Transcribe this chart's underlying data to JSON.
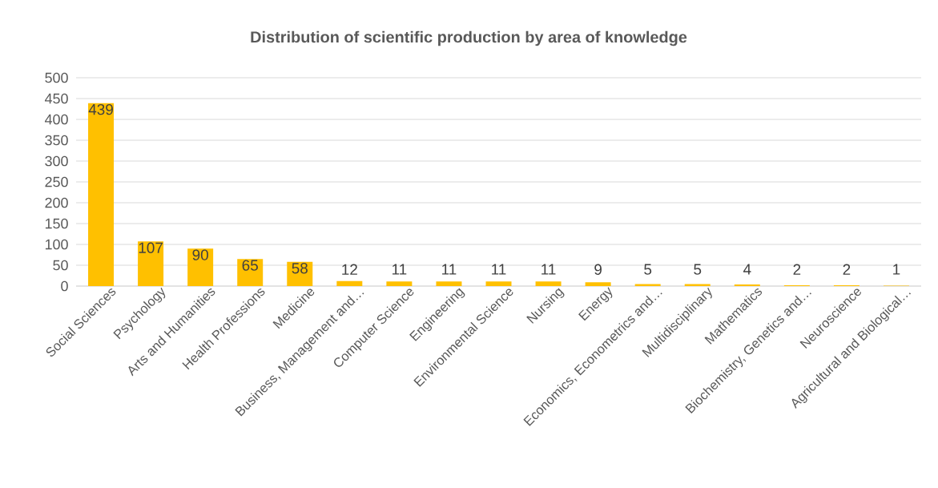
{
  "chart_data": {
    "type": "bar",
    "title": "Distribution of scientific production by area of knowledge",
    "categories": [
      "Social Sciences",
      "Psychology",
      "Arts and Humanities",
      "Health Professions",
      "Medicine",
      "Business, Management and…",
      "Computer Science",
      "Engineering",
      "Environmental Science",
      "Nursing",
      "Energy",
      "Economics, Econometrics and…",
      "Multidisciplinary",
      "Mathematics",
      "Biochemistry, Genetics and…",
      "Neuroscience",
      "Agricultural and Biological…"
    ],
    "values": [
      439,
      107,
      90,
      65,
      58,
      12,
      11,
      11,
      11,
      11,
      9,
      5,
      5,
      4,
      2,
      2,
      1
    ],
    "color": "#ffc000",
    "ylim": [
      0,
      500
    ],
    "yticks": [
      0,
      50,
      100,
      150,
      200,
      250,
      300,
      350,
      400,
      450,
      500
    ],
    "grid": "y",
    "data_labels": true
  }
}
